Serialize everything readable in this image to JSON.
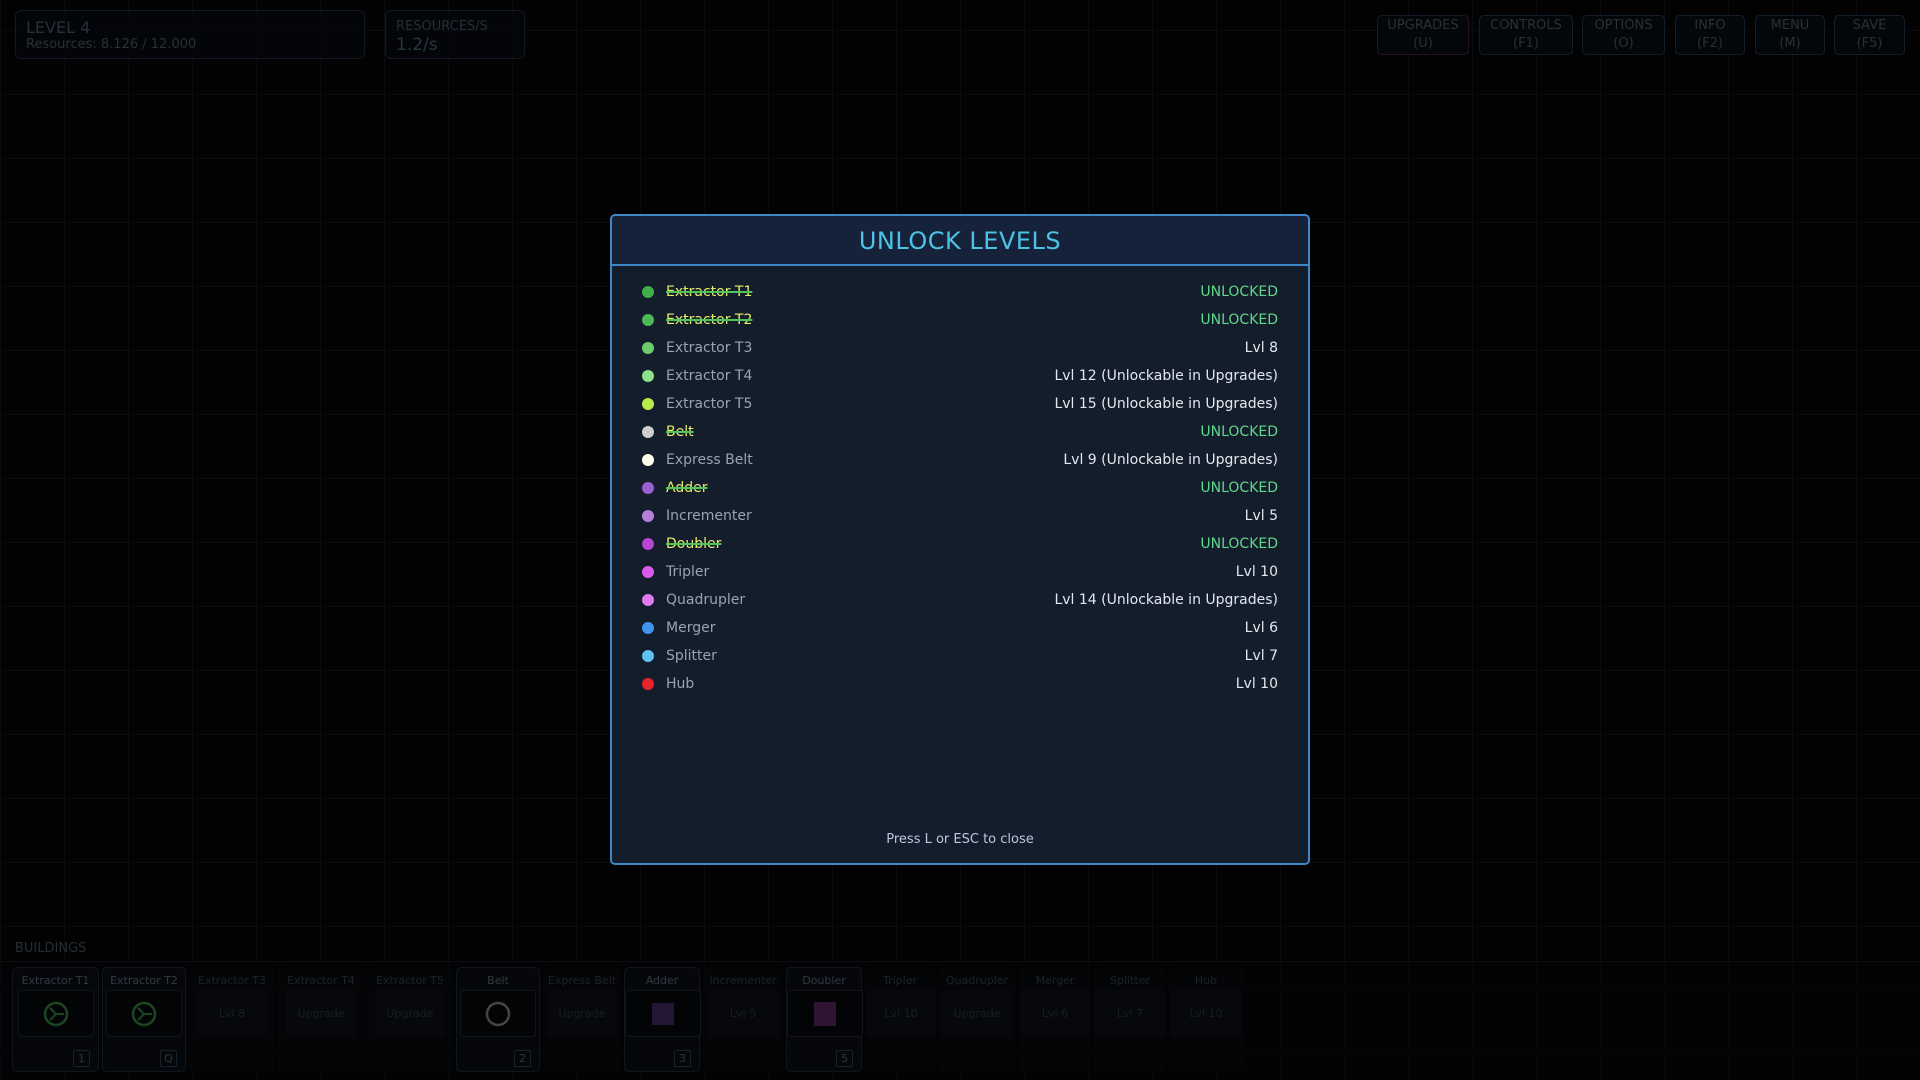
{
  "hud": {
    "level": "LEVEL 4",
    "resources": "Resources: 8.126 / 12.000",
    "rps_label": "RESOURCES/S",
    "rps_value": "1.2/s"
  },
  "topbar": [
    {
      "label": "UPGRADES",
      "key": "(U)"
    },
    {
      "label": "CONTROLS",
      "key": "(F1)"
    },
    {
      "label": "OPTIONS",
      "key": "(O)"
    },
    {
      "label": "INFO",
      "key": "(F2)"
    },
    {
      "label": "MENU",
      "key": "(M)"
    },
    {
      "label": "SAVE",
      "key": "(F5)"
    }
  ],
  "modal": {
    "title": "UNLOCK LEVELS",
    "footer": "Press L or ESC to close",
    "items": [
      {
        "name": "Extractor T1",
        "status": "UNLOCKED",
        "unlocked": true,
        "color": "#3fae4a"
      },
      {
        "name": "Extractor T2",
        "status": "UNLOCKED",
        "unlocked": true,
        "color": "#4cba55"
      },
      {
        "name": "Extractor T3",
        "status": "Lvl 8",
        "unlocked": false,
        "color": "#6ccc6c"
      },
      {
        "name": "Extractor T4",
        "status": "Lvl 12 (Unlockable in Upgrades)",
        "unlocked": false,
        "color": "#8ee08a"
      },
      {
        "name": "Extractor T5",
        "status": "Lvl 15 (Unlockable in Upgrades)",
        "unlocked": false,
        "color": "#b8ec4a"
      },
      {
        "name": "Belt",
        "status": "UNLOCKED",
        "unlocked": true,
        "color": "#cfcfcf"
      },
      {
        "name": "Express Belt",
        "status": "Lvl 9 (Unlockable in Upgrades)",
        "unlocked": false,
        "color": "#fffbe8"
      },
      {
        "name": "Adder",
        "status": "UNLOCKED",
        "unlocked": true,
        "color": "#9b5fd0"
      },
      {
        "name": "Incrementer",
        "status": "Lvl 5",
        "unlocked": false,
        "color": "#b77fdc"
      },
      {
        "name": "Doubler",
        "status": "UNLOCKED",
        "unlocked": true,
        "color": "#b845d6"
      },
      {
        "name": "Tripler",
        "status": "Lvl 10",
        "unlocked": false,
        "color": "#d85ae8"
      },
      {
        "name": "Quadrupler",
        "status": "Lvl 14 (Unlockable in Upgrades)",
        "unlocked": false,
        "color": "#e27aee"
      },
      {
        "name": "Merger",
        "status": "Lvl 6",
        "unlocked": false,
        "color": "#3f93ec"
      },
      {
        "name": "Splitter",
        "status": "Lvl 7",
        "unlocked": false,
        "color": "#5cc3f2"
      },
      {
        "name": "Hub",
        "status": "Lvl 10",
        "unlocked": false,
        "color": "#e8242a"
      }
    ]
  },
  "buildings": {
    "label": "BUILDINGS",
    "cards": [
      {
        "name": "Extractor T1",
        "unlocked": true,
        "icon": "extractor-icon",
        "key": "1"
      },
      {
        "name": "Extractor T2",
        "unlocked": true,
        "icon": "extractor-icon",
        "key": "Q"
      },
      {
        "name": "Extractor T3",
        "unlocked": false,
        "req": "Lvl 8"
      },
      {
        "name": "Extractor T4",
        "unlocked": false,
        "req": "Upgrade"
      },
      {
        "name": "Extractor T5",
        "unlocked": false,
        "req": "Upgrade"
      },
      {
        "name": "Belt",
        "unlocked": true,
        "icon": "belt-icon",
        "key": "2"
      },
      {
        "name": "Express Belt",
        "unlocked": false,
        "req": "Upgrade"
      },
      {
        "name": "Adder",
        "unlocked": true,
        "icon": "adder-icon",
        "key": "3"
      },
      {
        "name": "Incrementer",
        "unlocked": false,
        "req": "Lvl 5"
      },
      {
        "name": "Doubler",
        "unlocked": true,
        "icon": "doubler-icon",
        "key": "5"
      },
      {
        "name": "Tripler",
        "unlocked": false,
        "req": "Lvl 10"
      },
      {
        "name": "Quadrupler",
        "unlocked": false,
        "req": "Upgrade"
      },
      {
        "name": "Merger",
        "unlocked": false,
        "req": "Lvl 6"
      },
      {
        "name": "Splitter",
        "unlocked": false,
        "req": "Lvl 7"
      },
      {
        "name": "Hub",
        "unlocked": false,
        "req": "Lvl 10"
      }
    ]
  }
}
